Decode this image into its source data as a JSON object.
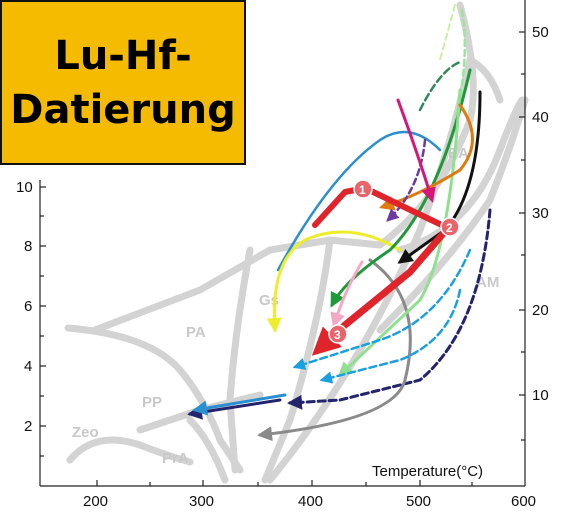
{
  "title": {
    "line1": "Lu-Hf-",
    "line2": "Datierung"
  },
  "x_axis": {
    "label": "Temperature(°C)",
    "ticks": [
      "200",
      "300",
      "400",
      "500",
      "600"
    ]
  },
  "y_axis_left": {
    "ticks": [
      "2",
      "4",
      "6",
      "8",
      "10"
    ]
  },
  "y_axis_right": {
    "ticks": [
      "10",
      "20",
      "30",
      "40",
      "50"
    ]
  },
  "facies": [
    "Zeo",
    "PP",
    "PrA",
    "PA",
    "Gs",
    "EA",
    "AM"
  ],
  "steps": [
    "1",
    "2",
    "3"
  ],
  "colors": {
    "title_bg": "#f5bb00",
    "facies_lines": "#d2d2d2",
    "main_path": "#e0242b",
    "step_circle": "#e8666b"
  }
}
